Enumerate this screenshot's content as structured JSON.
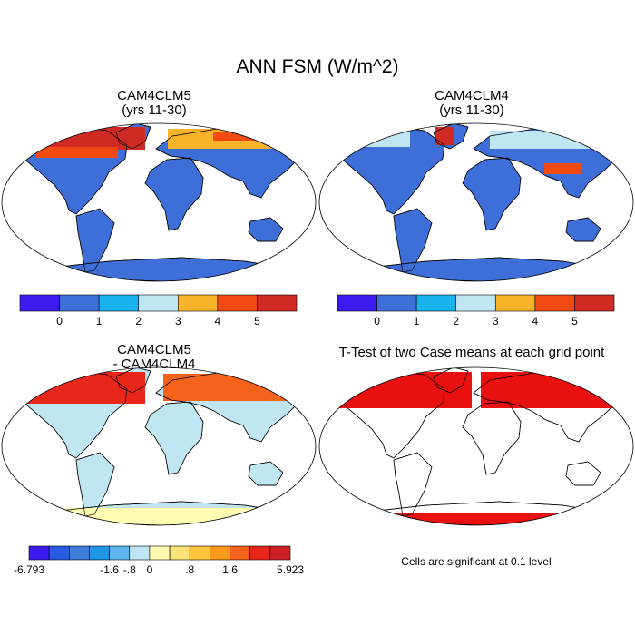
{
  "title": "ANN FSM (W/m^2)",
  "panels": {
    "top_left": {
      "title_line1": "CAM4CLM5",
      "title_line2": "(yrs 11-30)"
    },
    "top_right": {
      "title_line1": "CAM4CLM4",
      "title_line2": "(yrs 11-30)"
    },
    "bottom_left": {
      "title_line1": "CAM4CLM5",
      "title_line2": "- CAM4CLM4"
    },
    "bottom_right": {
      "title": "T-Test of two Case means at each grid point",
      "note": "Cells are significant at 0.1 level"
    }
  },
  "colorbars": {
    "field": {
      "colors": [
        "#3a1cf0",
        "#3e6fd8",
        "#18b2ee",
        "#bfe6f2",
        "#f8b32b",
        "#f24a11",
        "#cf2b24"
      ],
      "labels": [
        "0",
        "1",
        "2",
        "3",
        "4",
        "5"
      ]
    },
    "diff": {
      "colors": [
        "#3a1cf0",
        "#2b5be0",
        "#3d7fd8",
        "#1f95e6",
        "#5bb4ea",
        "#bfe6f2",
        "#fffcb2",
        "#fde27a",
        "#fbc53c",
        "#f99a1d",
        "#f5621a",
        "#e8261a",
        "#cf1f26"
      ],
      "labels": [
        "-6.793",
        "-1.6",
        "-.8",
        "0",
        ".8",
        "1.6",
        "5.923"
      ]
    }
  },
  "colors": {
    "ocean": "#ffffff",
    "outline": "#000000",
    "significant": "#e8110f"
  }
}
